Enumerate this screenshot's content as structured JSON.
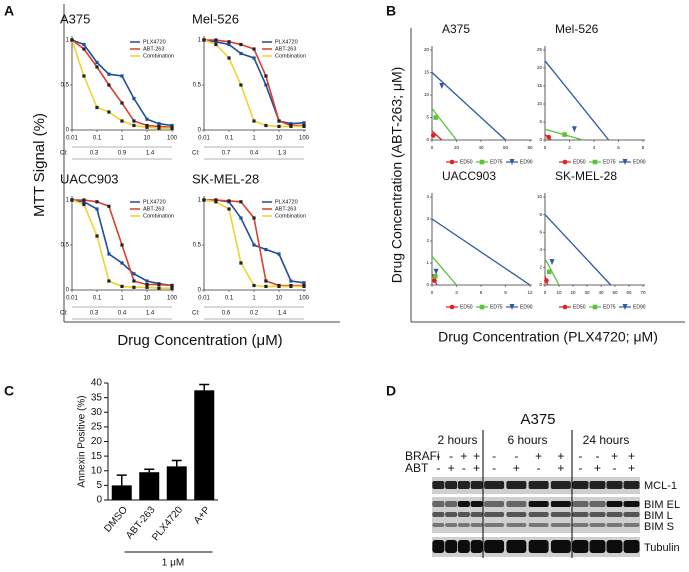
{
  "panel_labels": [
    "A",
    "B",
    "C",
    "D"
  ],
  "panel_a": {
    "y_label": "MTT Signal (%)",
    "x_label": "Drug Concentration (μM)",
    "ci_label": "CI:"
  },
  "panel_b": {
    "y_label": "Drug Concentration (ABT-263; μM)",
    "x_label": "Drug Concentration (PLX4720; μM)"
  },
  "blot": {
    "title": "A375",
    "times": [
      "2 hours",
      "6 hours",
      "24 hours"
    ],
    "rows": [
      "BRAFi",
      "ABT"
    ],
    "braf": [
      "-",
      "-",
      "+",
      "+",
      "-",
      "-",
      "+",
      "+",
      "-",
      "-",
      "+",
      "+"
    ],
    "abt": [
      "-",
      "+",
      "-",
      "+",
      "-",
      "+",
      "-",
      "+",
      "-",
      "+",
      "-",
      "+"
    ],
    "proteins": [
      "MCL-1",
      "BIM EL",
      "BIM L",
      "BIM S",
      "Tubulin"
    ]
  },
  "chart_data": [
    {
      "type": "line",
      "title": "A375",
      "log_x": true,
      "x": [
        0.01,
        0.03,
        0.1,
        0.3,
        1,
        3,
        10,
        30,
        100
      ],
      "xlim": [
        0.01,
        100
      ],
      "xticks": [
        0.01,
        0.1,
        1,
        10,
        100
      ],
      "ylim": [
        0,
        1
      ],
      "yticks": [
        0,
        0.5,
        1
      ],
      "ci": [
        0.3,
        0.9,
        1.4
      ],
      "series": [
        {
          "name": "PLX4720",
          "color": "#1f4e9a",
          "values": [
            1,
            0.95,
            0.75,
            0.62,
            0.6,
            0.35,
            0.12,
            0.07,
            0.05
          ]
        },
        {
          "name": "ABT-263",
          "color": "#d9412b",
          "values": [
            1,
            0.9,
            0.7,
            0.5,
            0.3,
            0.1,
            0.05,
            0.04,
            0.03
          ]
        },
        {
          "name": "Combination",
          "color": "#f2d22e",
          "values": [
            1,
            0.6,
            0.25,
            0.2,
            0.1,
            0.05,
            0.03,
            0.02,
            0.02
          ]
        }
      ]
    },
    {
      "type": "line",
      "title": "Mel-526",
      "log_x": true,
      "x": [
        0.01,
        0.03,
        0.1,
        0.3,
        1,
        3,
        10,
        30,
        100
      ],
      "xlim": [
        0.01,
        100
      ],
      "xticks": [
        0.01,
        0.1,
        1,
        10,
        100
      ],
      "ylim": [
        0,
        1
      ],
      "yticks": [
        0,
        0.5,
        1
      ],
      "ci": [
        0.7,
        0.4,
        1.3
      ],
      "series": [
        {
          "name": "PLX4720",
          "color": "#1f4e9a",
          "values": [
            1,
            0.98,
            0.95,
            0.85,
            0.8,
            0.5,
            0.1,
            0.07,
            0.08
          ]
        },
        {
          "name": "ABT-263",
          "color": "#d9412b",
          "values": [
            1,
            1,
            0.98,
            0.95,
            0.9,
            0.6,
            0.1,
            0.05,
            0.05
          ]
        },
        {
          "name": "Combination",
          "color": "#f2d22e",
          "values": [
            1,
            0.95,
            0.8,
            0.5,
            0.1,
            0.05,
            0.04,
            0.04,
            0.04
          ]
        }
      ]
    },
    {
      "type": "line",
      "title": "UACC903",
      "log_x": true,
      "x": [
        0.01,
        0.03,
        0.1,
        0.3,
        1,
        3,
        10,
        30,
        100
      ],
      "xlim": [
        0.01,
        100
      ],
      "xticks": [
        0.01,
        0.1,
        1,
        10,
        100
      ],
      "ylim": [
        0,
        1
      ],
      "yticks": [
        0,
        0.5,
        1
      ],
      "ci": [
        0.3,
        0.4,
        1.4
      ],
      "series": [
        {
          "name": "PLX4720",
          "color": "#1f4e9a",
          "values": [
            1,
            0.98,
            0.9,
            0.4,
            0.3,
            0.18,
            0.1,
            0.07,
            0.05
          ]
        },
        {
          "name": "ABT-263",
          "color": "#d9412b",
          "values": [
            1,
            1,
            0.98,
            0.93,
            0.5,
            0.1,
            0.06,
            0.06,
            0.05
          ]
        },
        {
          "name": "Combination",
          "color": "#f2d22e",
          "values": [
            1,
            0.95,
            0.6,
            0.1,
            0.04,
            0.03,
            0.03,
            0.02,
            0.02
          ]
        }
      ]
    },
    {
      "type": "line",
      "title": "SK-MEL-28",
      "log_x": true,
      "x": [
        0.01,
        0.03,
        0.1,
        0.3,
        1,
        3,
        10,
        30,
        100
      ],
      "xlim": [
        0.01,
        100
      ],
      "xticks": [
        0.01,
        0.1,
        1,
        10,
        100
      ],
      "ylim": [
        0,
        1
      ],
      "yticks": [
        0,
        0.5,
        1
      ],
      "ci": [
        0.6,
        0.2,
        1.4
      ],
      "series": [
        {
          "name": "PLX4720",
          "color": "#1f4e9a",
          "values": [
            1,
            1,
            0.98,
            0.8,
            0.5,
            0.45,
            0.4,
            0.1,
            0.08
          ]
        },
        {
          "name": "ABT-263",
          "color": "#d9412b",
          "values": [
            1,
            1,
            0.99,
            0.98,
            0.8,
            0.1,
            0.05,
            0.05,
            0.05
          ]
        },
        {
          "name": "Combination",
          "color": "#f2d22e",
          "values": [
            1,
            0.98,
            0.9,
            0.3,
            0.05,
            0.04,
            0.04,
            0.04,
            0.04
          ]
        }
      ]
    },
    {
      "type": "isobologram",
      "title": "A375",
      "xlim": [
        0,
        80
      ],
      "xticks": [
        0,
        20,
        40,
        60,
        80
      ],
      "ylim": [
        0,
        20
      ],
      "yticks": [
        0,
        5,
        10,
        15,
        20
      ],
      "series": [
        {
          "name": "ED50",
          "color": "#e0201b",
          "x": [
            0,
            8
          ],
          "values": [
            2,
            0
          ],
          "point_x": 1,
          "point_y": 1
        },
        {
          "name": "ED75",
          "color": "#5cc23b",
          "x": [
            0,
            20
          ],
          "values": [
            7,
            0
          ],
          "point_x": 3,
          "point_y": 5
        },
        {
          "name": "ED90",
          "color": "#2b5aa8",
          "x": [
            0,
            60
          ],
          "values": [
            15,
            0
          ],
          "point_x": 8,
          "point_y": 12
        }
      ]
    },
    {
      "type": "isobologram",
      "title": "Mel-526",
      "xlim": [
        0,
        8
      ],
      "xticks": [
        0,
        2,
        4,
        6,
        8
      ],
      "ylim": [
        0,
        25
      ],
      "yticks": [
        0,
        5,
        10,
        15,
        20,
        25
      ],
      "series": [
        {
          "name": "ED50",
          "color": "#e0201b",
          "x": [
            0,
            0.5
          ],
          "values": [
            1.5,
            0
          ],
          "point_x": 0.3,
          "point_y": 0.8
        },
        {
          "name": "ED75",
          "color": "#5cc23b",
          "x": [
            0,
            3.1
          ],
          "values": [
            3,
            0
          ],
          "point_x": 1.6,
          "point_y": 1.5
        },
        {
          "name": "ED90",
          "color": "#2b5aa8",
          "x": [
            0,
            5.2
          ],
          "values": [
            22,
            0
          ],
          "point_x": 2.4,
          "point_y": 3
        }
      ]
    },
    {
      "type": "isobologram",
      "title": "UACC903",
      "xlim": [
        0,
        12
      ],
      "xticks": [
        0,
        3,
        6,
        9,
        12
      ],
      "ylim": [
        0,
        4
      ],
      "yticks": [
        0,
        1,
        2,
        3,
        4
      ],
      "series": [
        {
          "name": "ED50",
          "color": "#e0201b",
          "x": [
            0,
            0.6
          ],
          "values": [
            0.5,
            0
          ],
          "point_x": 0.3,
          "point_y": 0.2
        },
        {
          "name": "ED75",
          "color": "#5cc23b",
          "x": [
            0,
            3
          ],
          "values": [
            1.3,
            0
          ],
          "point_x": 0.4,
          "point_y": 0.4
        },
        {
          "name": "ED90",
          "color": "#2b5aa8",
          "x": [
            0,
            12
          ],
          "values": [
            3,
            0
          ],
          "point_x": 0.5,
          "point_y": 0.6
        }
      ]
    },
    {
      "type": "isobologram",
      "title": "SK-MEL-28",
      "xlim": [
        0,
        70
      ],
      "xticks": [
        0,
        10,
        20,
        30,
        40,
        50,
        60,
        70
      ],
      "ylim": [
        0,
        10
      ],
      "yticks": [
        0,
        2,
        4,
        6,
        8,
        10
      ],
      "series": [
        {
          "name": "ED50",
          "color": "#e0201b",
          "x": [
            0,
            2
          ],
          "values": [
            1,
            0
          ],
          "point_x": 1,
          "point_y": 0.5
        },
        {
          "name": "ED75",
          "color": "#5cc23b",
          "x": [
            0,
            10
          ],
          "values": [
            3,
            0
          ],
          "point_x": 3,
          "point_y": 1.5
        },
        {
          "name": "ED90",
          "color": "#2b5aa8",
          "x": [
            0,
            47
          ],
          "values": [
            8,
            0
          ],
          "point_x": 5,
          "point_y": 2.6
        }
      ]
    },
    {
      "type": "bar",
      "y_label": "Annexin Positive (%)",
      "annotation": "1 μM",
      "color": "#000000",
      "categories": [
        "DMSO",
        "ABT-263",
        "PLX4720",
        "A+P"
      ],
      "values": [
        5,
        9.5,
        11.5,
        37.5
      ],
      "errors": [
        3.5,
        1,
        2,
        2
      ],
      "ylim": [
        0,
        40
      ],
      "yticks": [
        0,
        5,
        10,
        15,
        20,
        25,
        30,
        35,
        40
      ]
    }
  ]
}
